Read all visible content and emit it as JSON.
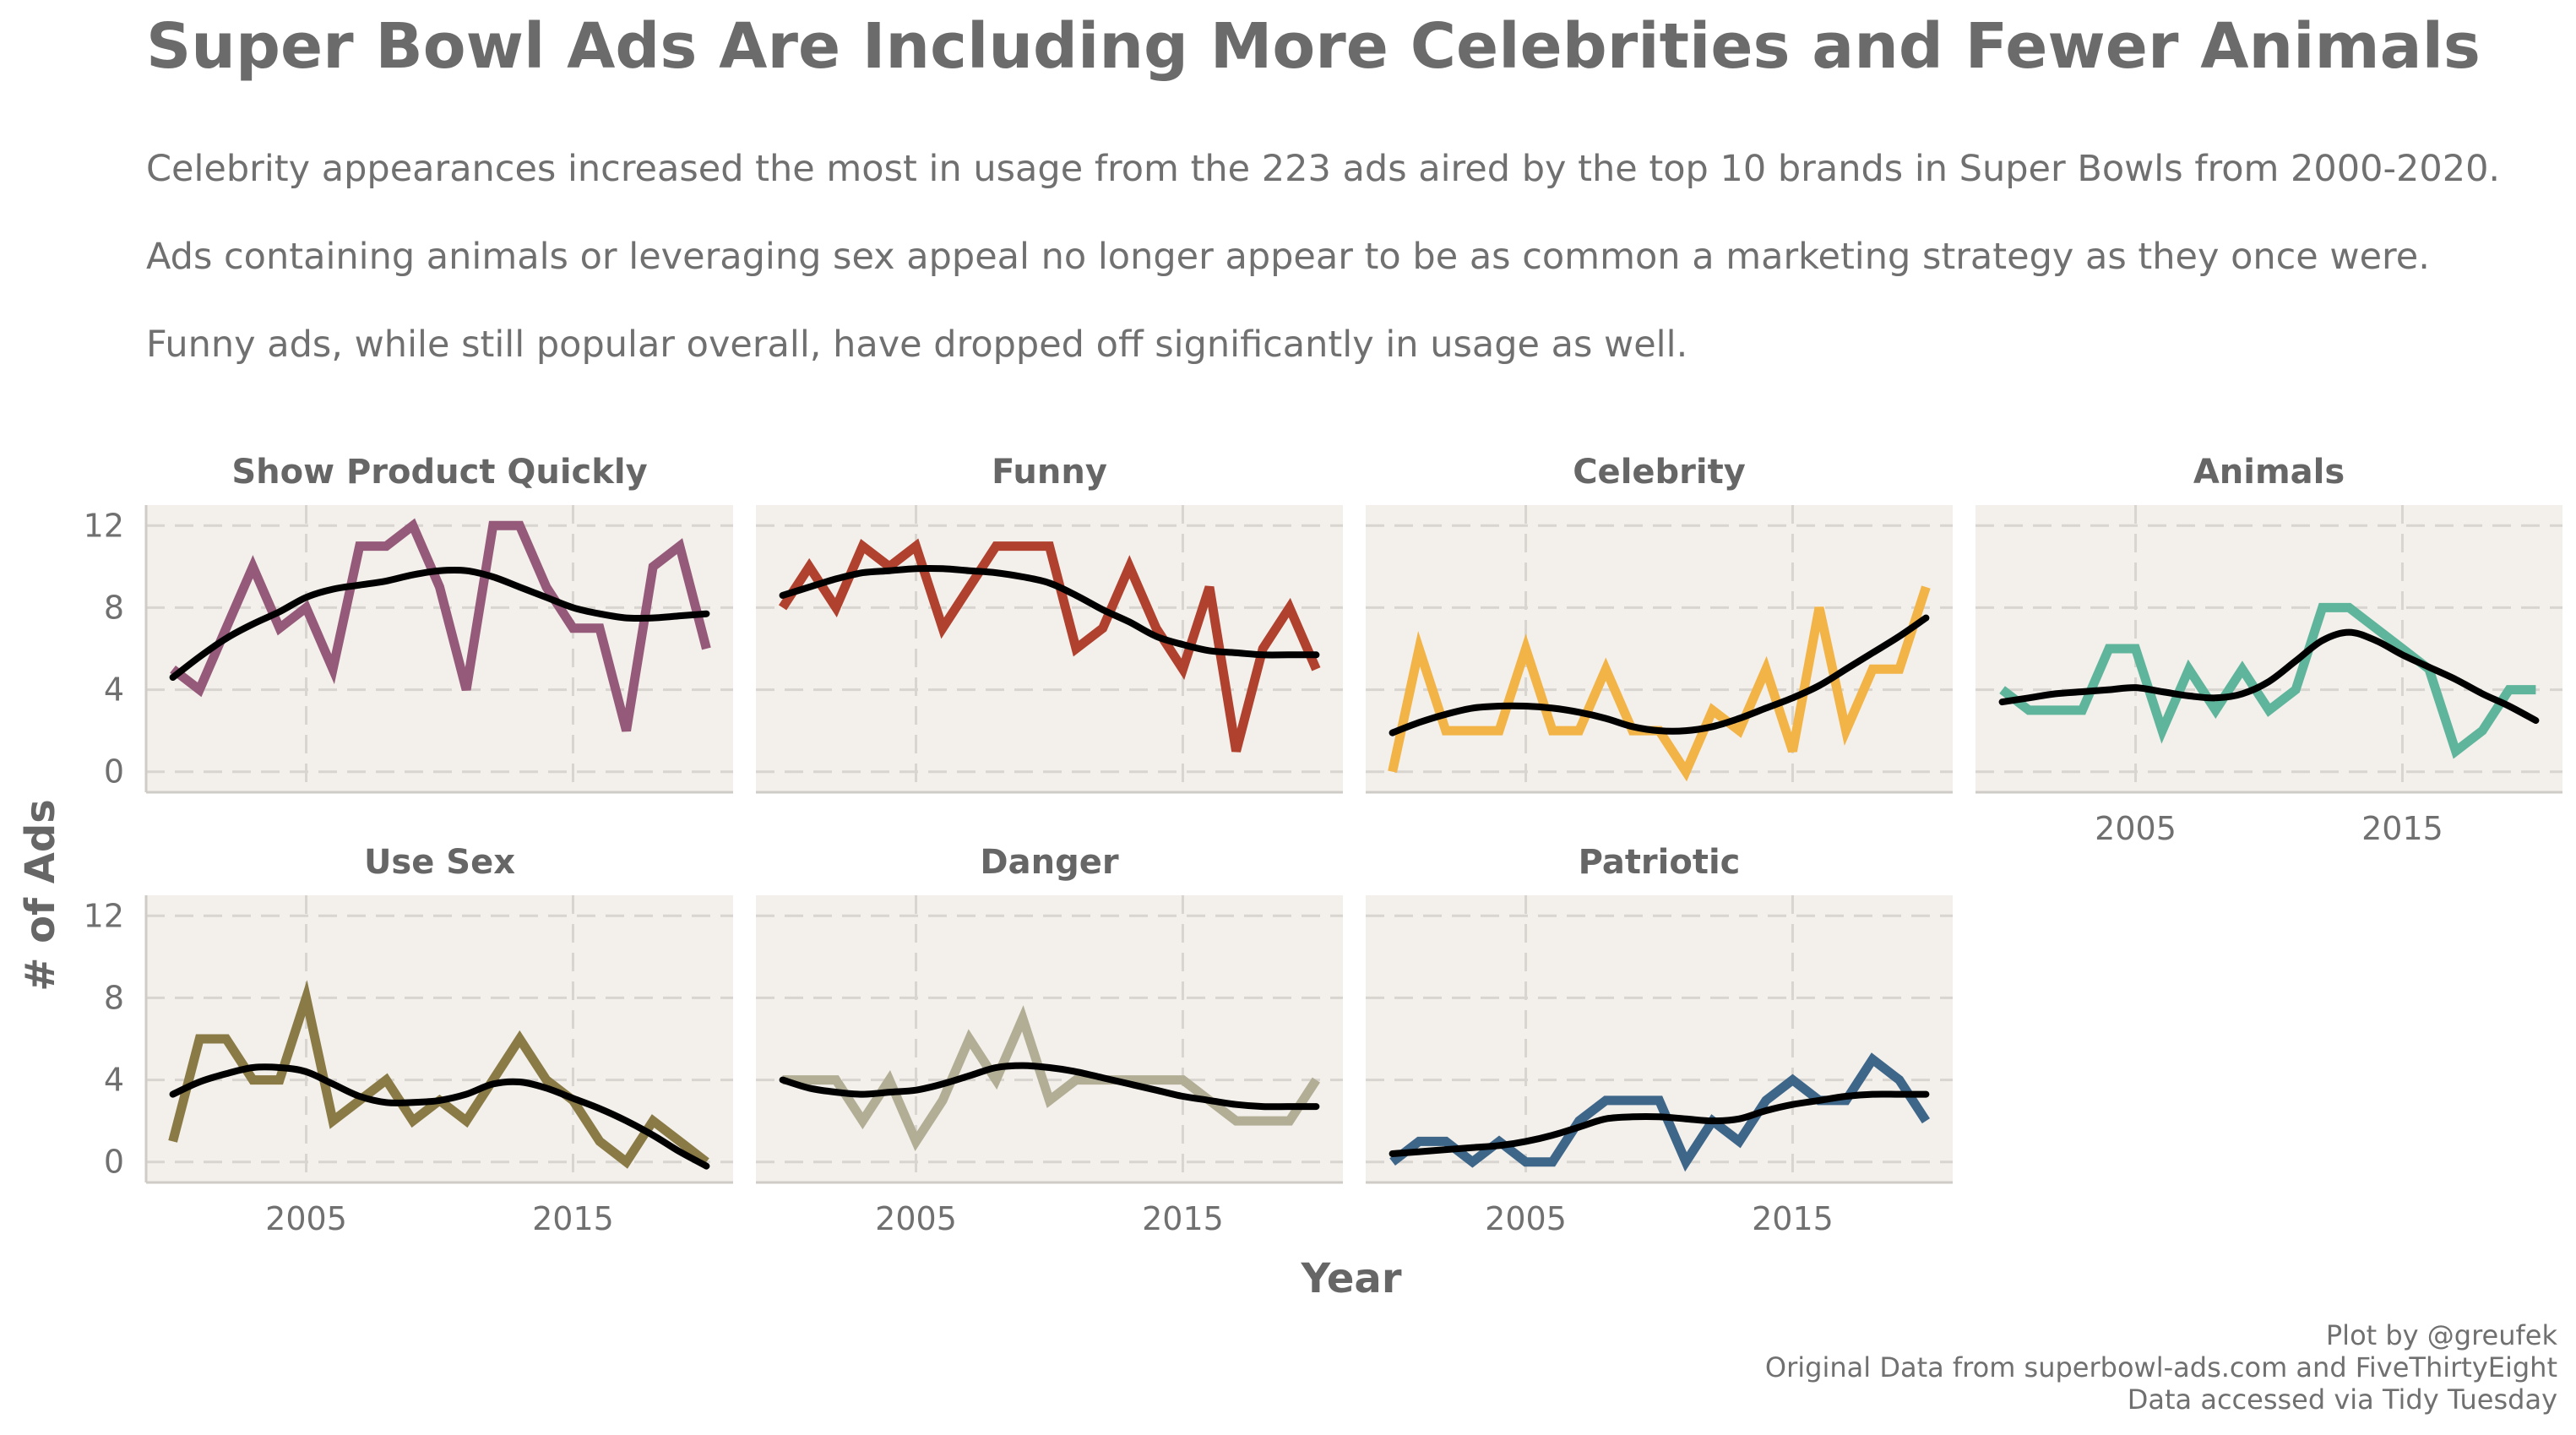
{
  "title": "Super Bowl Ads Are Including More Celebrities and Fewer Animals",
  "subtitle_lines": [
    "Celebrity appearances increased the most in usage from the 223 ads aired by the top 10 brands in Super Bowls from 2000-2020.",
    "Ads containing animals or leveraging sex appeal no longer appear to be as common a marketing strategy as they once were.",
    "Funny ads, while still popular overall, have dropped off significantly in usage as well."
  ],
  "caption_lines": [
    "Plot by @greufek",
    "Original Data from superbowl-ads.com and FiveThirtyEight",
    "Data accessed via Tidy Tuesday"
  ],
  "chart_data": {
    "type": "line",
    "facets": true,
    "xlabel": "Year",
    "ylabel": "# of Ads",
    "xlim": [
      1999,
      2021
    ],
    "ylim": [
      -1,
      13
    ],
    "xticks": [
      2005,
      2015
    ],
    "yticks": [
      0,
      4,
      8,
      12
    ],
    "grid": true,
    "legend": "none",
    "x": [
      2000,
      2001,
      2002,
      2003,
      2004,
      2005,
      2006,
      2007,
      2008,
      2009,
      2010,
      2011,
      2012,
      2013,
      2014,
      2015,
      2016,
      2017,
      2018,
      2019,
      2020
    ],
    "panels": [
      {
        "name": "Show Product Quickly",
        "color": "#955a7a",
        "values": [
          5,
          4,
          7,
          10,
          7,
          8,
          5,
          11,
          11,
          12,
          9,
          4,
          12,
          12,
          9,
          7,
          7,
          2,
          10,
          11,
          6
        ],
        "smooth": [
          4.6,
          5.6,
          6.5,
          7.2,
          7.8,
          8.5,
          8.9,
          9.1,
          9.3,
          9.6,
          9.8,
          9.8,
          9.5,
          9.0,
          8.5,
          8.0,
          7.7,
          7.5,
          7.5,
          7.6,
          7.7
        ]
      },
      {
        "name": "Funny",
        "color": "#b0412e",
        "values": [
          8,
          10,
          8,
          11,
          10,
          11,
          7,
          9,
          11,
          11,
          11,
          6,
          7,
          10,
          7,
          5,
          9,
          1,
          6,
          8,
          5
        ],
        "smooth": [
          8.6,
          9.0,
          9.4,
          9.7,
          9.8,
          9.9,
          9.9,
          9.8,
          9.7,
          9.5,
          9.2,
          8.6,
          7.9,
          7.3,
          6.6,
          6.2,
          5.9,
          5.8,
          5.7,
          5.7,
          5.7
        ]
      },
      {
        "name": "Celebrity",
        "color": "#f2b447",
        "values": [
          0,
          6,
          2,
          2,
          2,
          6,
          2,
          2,
          5,
          2,
          2,
          0,
          3,
          2,
          5,
          1,
          8,
          2,
          5,
          5,
          9
        ],
        "smooth": [
          1.9,
          2.4,
          2.8,
          3.1,
          3.2,
          3.2,
          3.1,
          2.9,
          2.6,
          2.2,
          2.0,
          2.0,
          2.2,
          2.6,
          3.1,
          3.6,
          4.2,
          5.0,
          5.8,
          6.6,
          7.5
        ]
      },
      {
        "name": "Animals",
        "color": "#5fb59b",
        "values": [
          4,
          3,
          3,
          3,
          6,
          6,
          2,
          5,
          3,
          5,
          3,
          4,
          8,
          8,
          7,
          6,
          5,
          1,
          2,
          4,
          4
        ],
        "smooth": [
          3.4,
          3.6,
          3.8,
          3.9,
          4.0,
          4.1,
          3.9,
          3.7,
          3.6,
          3.8,
          4.4,
          5.4,
          6.4,
          6.8,
          6.4,
          5.7,
          5.1,
          4.5,
          3.8,
          3.2,
          2.5
        ]
      },
      {
        "name": "Use Sex",
        "color": "#8a7b46",
        "values": [
          1,
          6,
          6,
          4,
          4,
          8,
          2,
          3,
          4,
          2,
          3,
          2,
          4,
          6,
          4,
          3,
          1,
          0,
          2,
          1,
          0
        ],
        "smooth": [
          3.3,
          3.9,
          4.3,
          4.6,
          4.6,
          4.4,
          3.8,
          3.2,
          2.9,
          2.9,
          3.0,
          3.3,
          3.8,
          3.9,
          3.6,
          3.1,
          2.6,
          2.0,
          1.3,
          0.5,
          -0.2
        ]
      },
      {
        "name": "Danger",
        "color": "#b2ae96",
        "values": [
          4,
          4,
          4,
          2,
          4,
          1,
          3,
          6,
          4,
          7,
          3,
          4,
          4,
          4,
          4,
          4,
          3,
          2,
          2,
          2,
          4
        ],
        "smooth": [
          4.0,
          3.6,
          3.4,
          3.3,
          3.4,
          3.5,
          3.8,
          4.2,
          4.6,
          4.7,
          4.6,
          4.4,
          4.1,
          3.8,
          3.5,
          3.2,
          3.0,
          2.8,
          2.7,
          2.7,
          2.7
        ]
      },
      {
        "name": "Patriotic",
        "color": "#3e6689",
        "values": [
          0,
          1,
          1,
          0,
          1,
          0,
          0,
          2,
          3,
          3,
          3,
          0,
          2,
          1,
          3,
          4,
          3,
          3,
          5,
          4,
          2
        ],
        "smooth": [
          0.4,
          0.5,
          0.6,
          0.7,
          0.8,
          1.0,
          1.3,
          1.7,
          2.1,
          2.2,
          2.2,
          2.1,
          2.0,
          2.1,
          2.5,
          2.8,
          3.0,
          3.2,
          3.3,
          3.3,
          3.3
        ]
      }
    ]
  }
}
